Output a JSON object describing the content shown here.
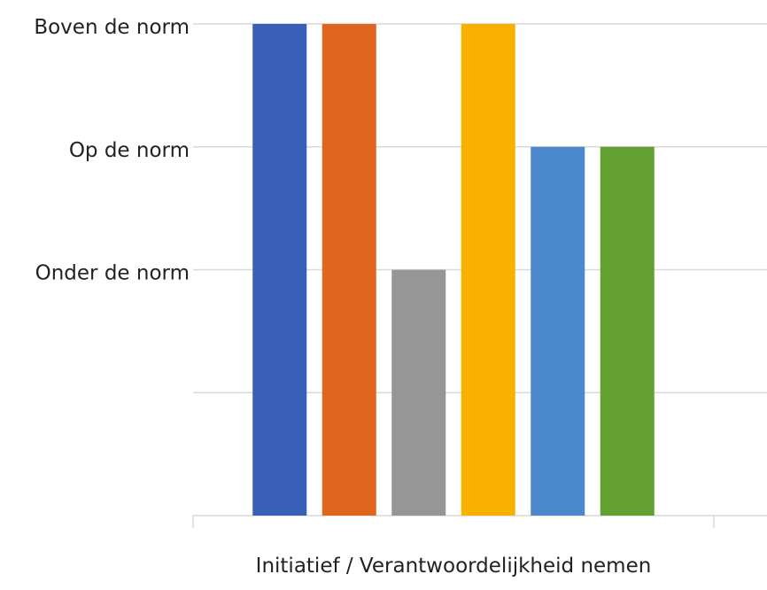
{
  "chart_data": {
    "type": "bar",
    "categories": [
      "Initiatief / Verantwoordelijkheid nemen"
    ],
    "series": [
      {
        "color": "#3a5fb9",
        "values": [
          4
        ]
      },
      {
        "color": "#e0651f",
        "values": [
          4
        ]
      },
      {
        "color": "#969696",
        "values": [
          2
        ]
      },
      {
        "color": "#f9b100",
        "values": [
          4
        ]
      },
      {
        "color": "#4b89cc",
        "values": [
          3
        ]
      },
      {
        "color": "#63a031",
        "values": [
          3
        ]
      }
    ],
    "ylim": [
      0,
      4
    ],
    "yticks": [
      {
        "value": 0,
        "label": null
      },
      {
        "value": 1,
        "label": null
      },
      {
        "value": 2,
        "label": "Onder de norm"
      },
      {
        "value": 3,
        "label": "Op de norm"
      },
      {
        "value": 4,
        "label": "Boven de norm"
      }
    ],
    "grid": true
  }
}
